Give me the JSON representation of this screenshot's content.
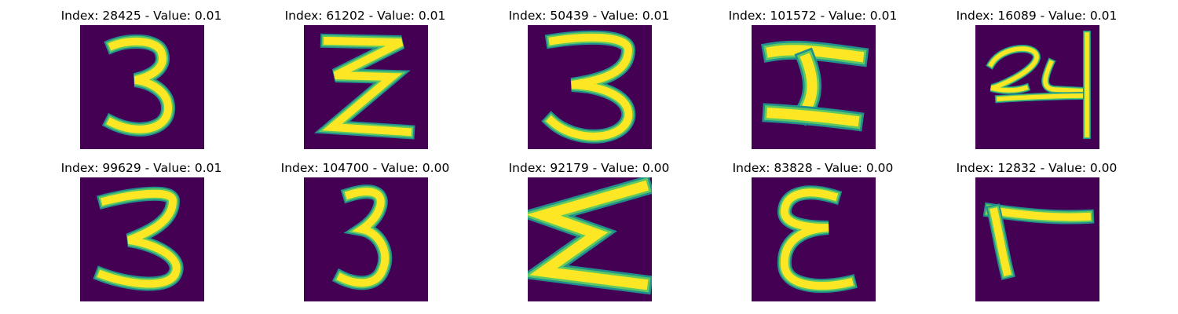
{
  "colors": {
    "background": "#440154",
    "stroke_edge": "#21908d",
    "stroke_mid": "#5ec962",
    "stroke_core": "#fde725"
  },
  "tiles": [
    {
      "title": "Index: 28425 - Value: 0.01",
      "glyph": "3"
    },
    {
      "title": "Index: 61202 - Value: 0.01",
      "glyph": "Z"
    },
    {
      "title": "Index: 50439 - Value: 0.01",
      "glyph": "3"
    },
    {
      "title": "Index: 101572 - Value: 0.01",
      "glyph": "I"
    },
    {
      "title": "Index: 16089 - Value: 0.01",
      "glyph": "24"
    },
    {
      "title": "Index: 99629 - Value: 0.01",
      "glyph": "3"
    },
    {
      "title": "Index: 104700 - Value: 0.00",
      "glyph": "3"
    },
    {
      "title": "Index: 92179 - Value: 0.00",
      "glyph": "Σ"
    },
    {
      "title": "Index: 83828 - Value: 0.00",
      "glyph": "ε"
    },
    {
      "title": "Index: 12832 - Value: 0.00",
      "glyph": "L"
    }
  ]
}
